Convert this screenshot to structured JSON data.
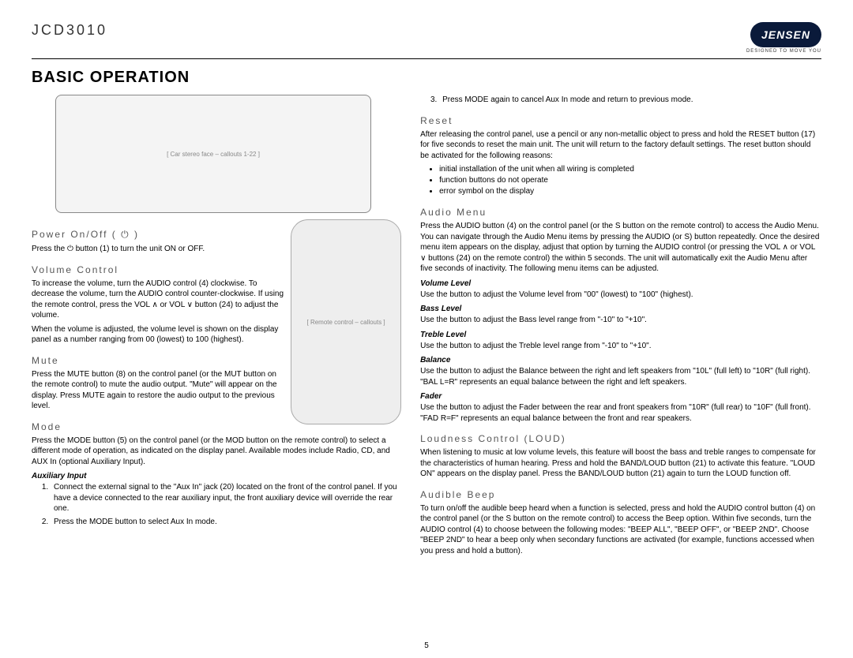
{
  "header": {
    "model": "JCD3010",
    "logo_text": "JENSEN",
    "tagline": "DESIGNED TO MOVE  YOU"
  },
  "title": "BASIC OPERATION",
  "diagram_label": "[ Car stereo face – callouts 1-22 ]",
  "remote_label": "[ Remote control – callouts ]",
  "left": {
    "power": {
      "h": "Power On/Off ( ⏻ )",
      "p": "Press the ⏻ button (1) to turn the unit ON or OFF."
    },
    "volume": {
      "h": "Volume Control",
      "p1": "To increase the volume, turn the AUDIO control (4) clockwise. To decrease the volume, turn the AUDIO control counter-clockwise. If using the remote control, press the VOL ∧ or VOL ∨ button (24) to adjust the volume.",
      "p2": "When the volume is adjusted, the volume level is shown on the display panel as a number ranging from 00 (lowest) to 100 (highest)."
    },
    "mute": {
      "h": "Mute",
      "p": "Press the MUTE button (8) on the control panel (or the MUT button on the remote control) to mute the audio output. \"Mute\" will appear on the display. Press MUTE again to restore the audio output to the previous level."
    },
    "mode": {
      "h": "Mode",
      "p": "Press the MODE button (5) on the control panel (or the MOD button on the remote control) to select a different mode of operation, as indicated on the display panel. Available modes include Radio, CD, and AUX In (optional Auxiliary Input).",
      "aux_h": "Auxiliary Input",
      "aux1": "Connect the external signal to the \"Aux In\" jack (20) located on the front of the control panel. If you have a device connected to the rear auxiliary input, the front auxiliary device will override the rear one.",
      "aux2": "Press the MODE button to select Aux In mode."
    }
  },
  "right": {
    "mode3": "Press MODE again to cancel Aux In mode and return to previous mode.",
    "reset": {
      "h": "Reset",
      "p": "After releasing the control panel, use a pencil or any non-metallic object to press and hold the RESET button (17) for five seconds to reset the main unit. The unit will return to the factory default settings. The reset button should be activated for the following reasons:",
      "b1": "initial installation of the unit when all wiring is completed",
      "b2": "function buttons do not operate",
      "b3": "error symbol on the display"
    },
    "audio": {
      "h": "Audio Menu",
      "p": "Press the AUDIO button (4) on the control panel (or the S button on the remote control) to access the Audio Menu. You can navigate through the Audio Menu items by pressing the AUDIO (or S) button repeatedly. Once the desired menu item appears on the display, adjust that option by turning the AUDIO control (or pressing the VOL ∧ or VOL ∨ buttons (24) on the remote control) the within 5 seconds. The unit will automatically exit the Audio Menu after five seconds of inactivity. The following menu items can be adjusted.",
      "vol_h": "Volume Level",
      "vol_p": "Use the button to adjust the Volume level from \"00\" (lowest) to \"100\" (highest).",
      "bass_h": "Bass Level",
      "bass_p": "Use the button to adjust the Bass level range from \"-10\" to \"+10\".",
      "treb_h": "Treble Level",
      "treb_p": "Use the button to adjust the Treble level range from \"-10\" to \"+10\".",
      "bal_h": "Balance",
      "bal_p": "Use the button to adjust the Balance between the right and left speakers from \"10L\" (full left) to \"10R\" (full right). \"BAL L=R\" represents an equal balance between the right and left speakers.",
      "fad_h": "Fader",
      "fad_p": "Use the button to adjust the Fader between the rear and front speakers from \"10R\" (full rear) to \"10F\" (full front). \"FAD R=F\" represents an equal balance between the front and rear speakers."
    },
    "loud": {
      "h": "Loudness Control (LOUD)",
      "p": "When listening to music at low volume levels, this feature will boost the bass and treble ranges to compensate for the characteristics of human hearing. Press and hold the BAND/LOUD button (21) to activate this feature. \"LOUD ON\" appears on the display panel. Press the BAND/LOUD button (21) again to turn the LOUD function off."
    },
    "beep": {
      "h": "Audible Beep",
      "p": "To turn on/off the audible beep heard when a function is selected, press and hold the AUDIO control button (4) on the control panel (or the S button on the remote control) to access the Beep option. Within five seconds, turn the AUDIO control (4) to choose between the following modes: \"BEEP ALL\", \"BEEP OFF\", or \"BEEP 2ND\". Choose \"BEEP 2ND\" to hear a beep only when secondary functions are activated (for example, functions accessed when you press and hold a button)."
    }
  },
  "page_number": "5"
}
